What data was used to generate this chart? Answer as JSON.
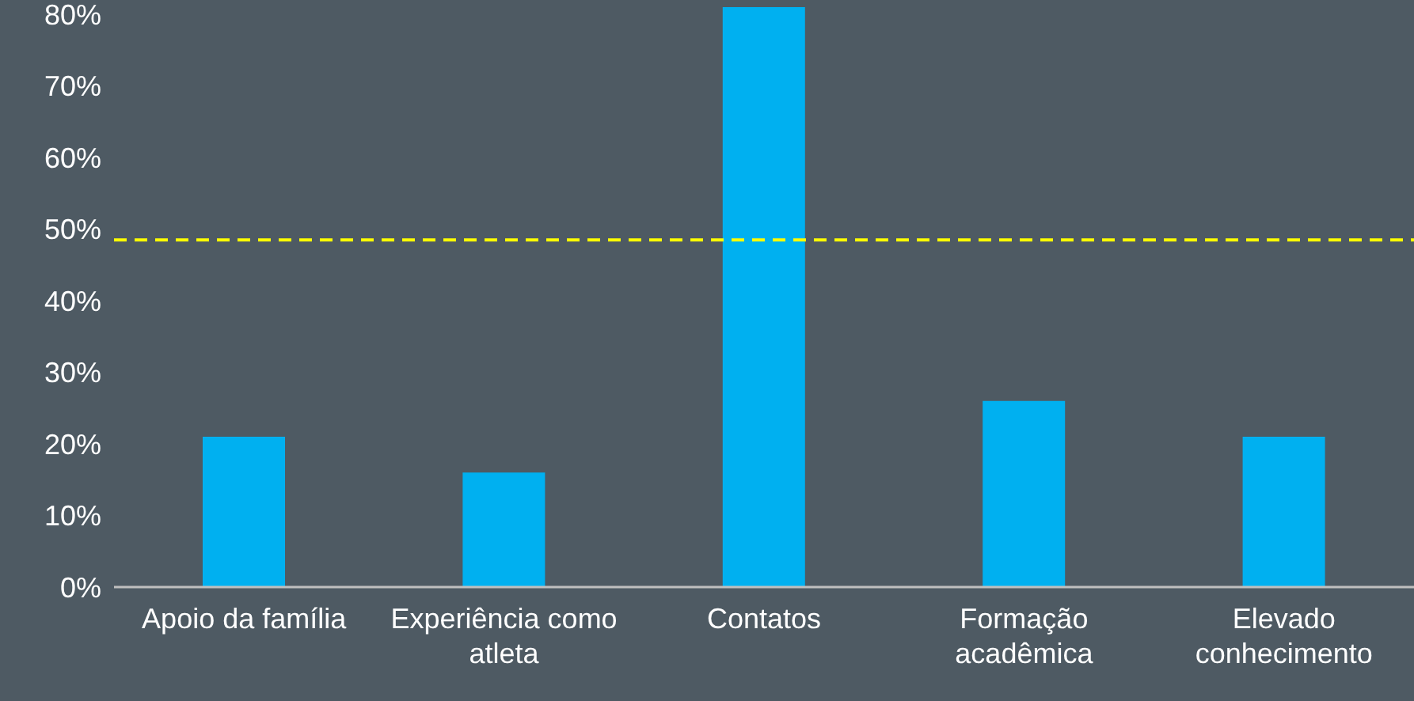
{
  "chart_data": {
    "type": "bar",
    "categories": [
      "Apoio da família",
      "Experiência como atleta",
      "Contatos",
      "Formação acadêmica",
      "Elevado conhecimento"
    ],
    "values": [
      21,
      16,
      81,
      26,
      21
    ],
    "color": "#00b0f0",
    "ylim": [
      0,
      82
    ],
    "yticks": [
      {
        "value": 0,
        "label": "0%"
      },
      {
        "value": 10,
        "label": "10%"
      },
      {
        "value": 20,
        "label": "20%"
      },
      {
        "value": 30,
        "label": "30%"
      },
      {
        "value": 40,
        "label": "40%"
      },
      {
        "value": 50,
        "label": "50%"
      },
      {
        "value": 60,
        "label": "60%"
      },
      {
        "value": 70,
        "label": "70%"
      },
      {
        "value": 80,
        "label": "80%"
      }
    ],
    "ref_lines": [
      {
        "axis": "y",
        "value": 48.5,
        "color": "#ffff00",
        "line_style": "dashed"
      }
    ],
    "grid": false,
    "legend": false
  }
}
